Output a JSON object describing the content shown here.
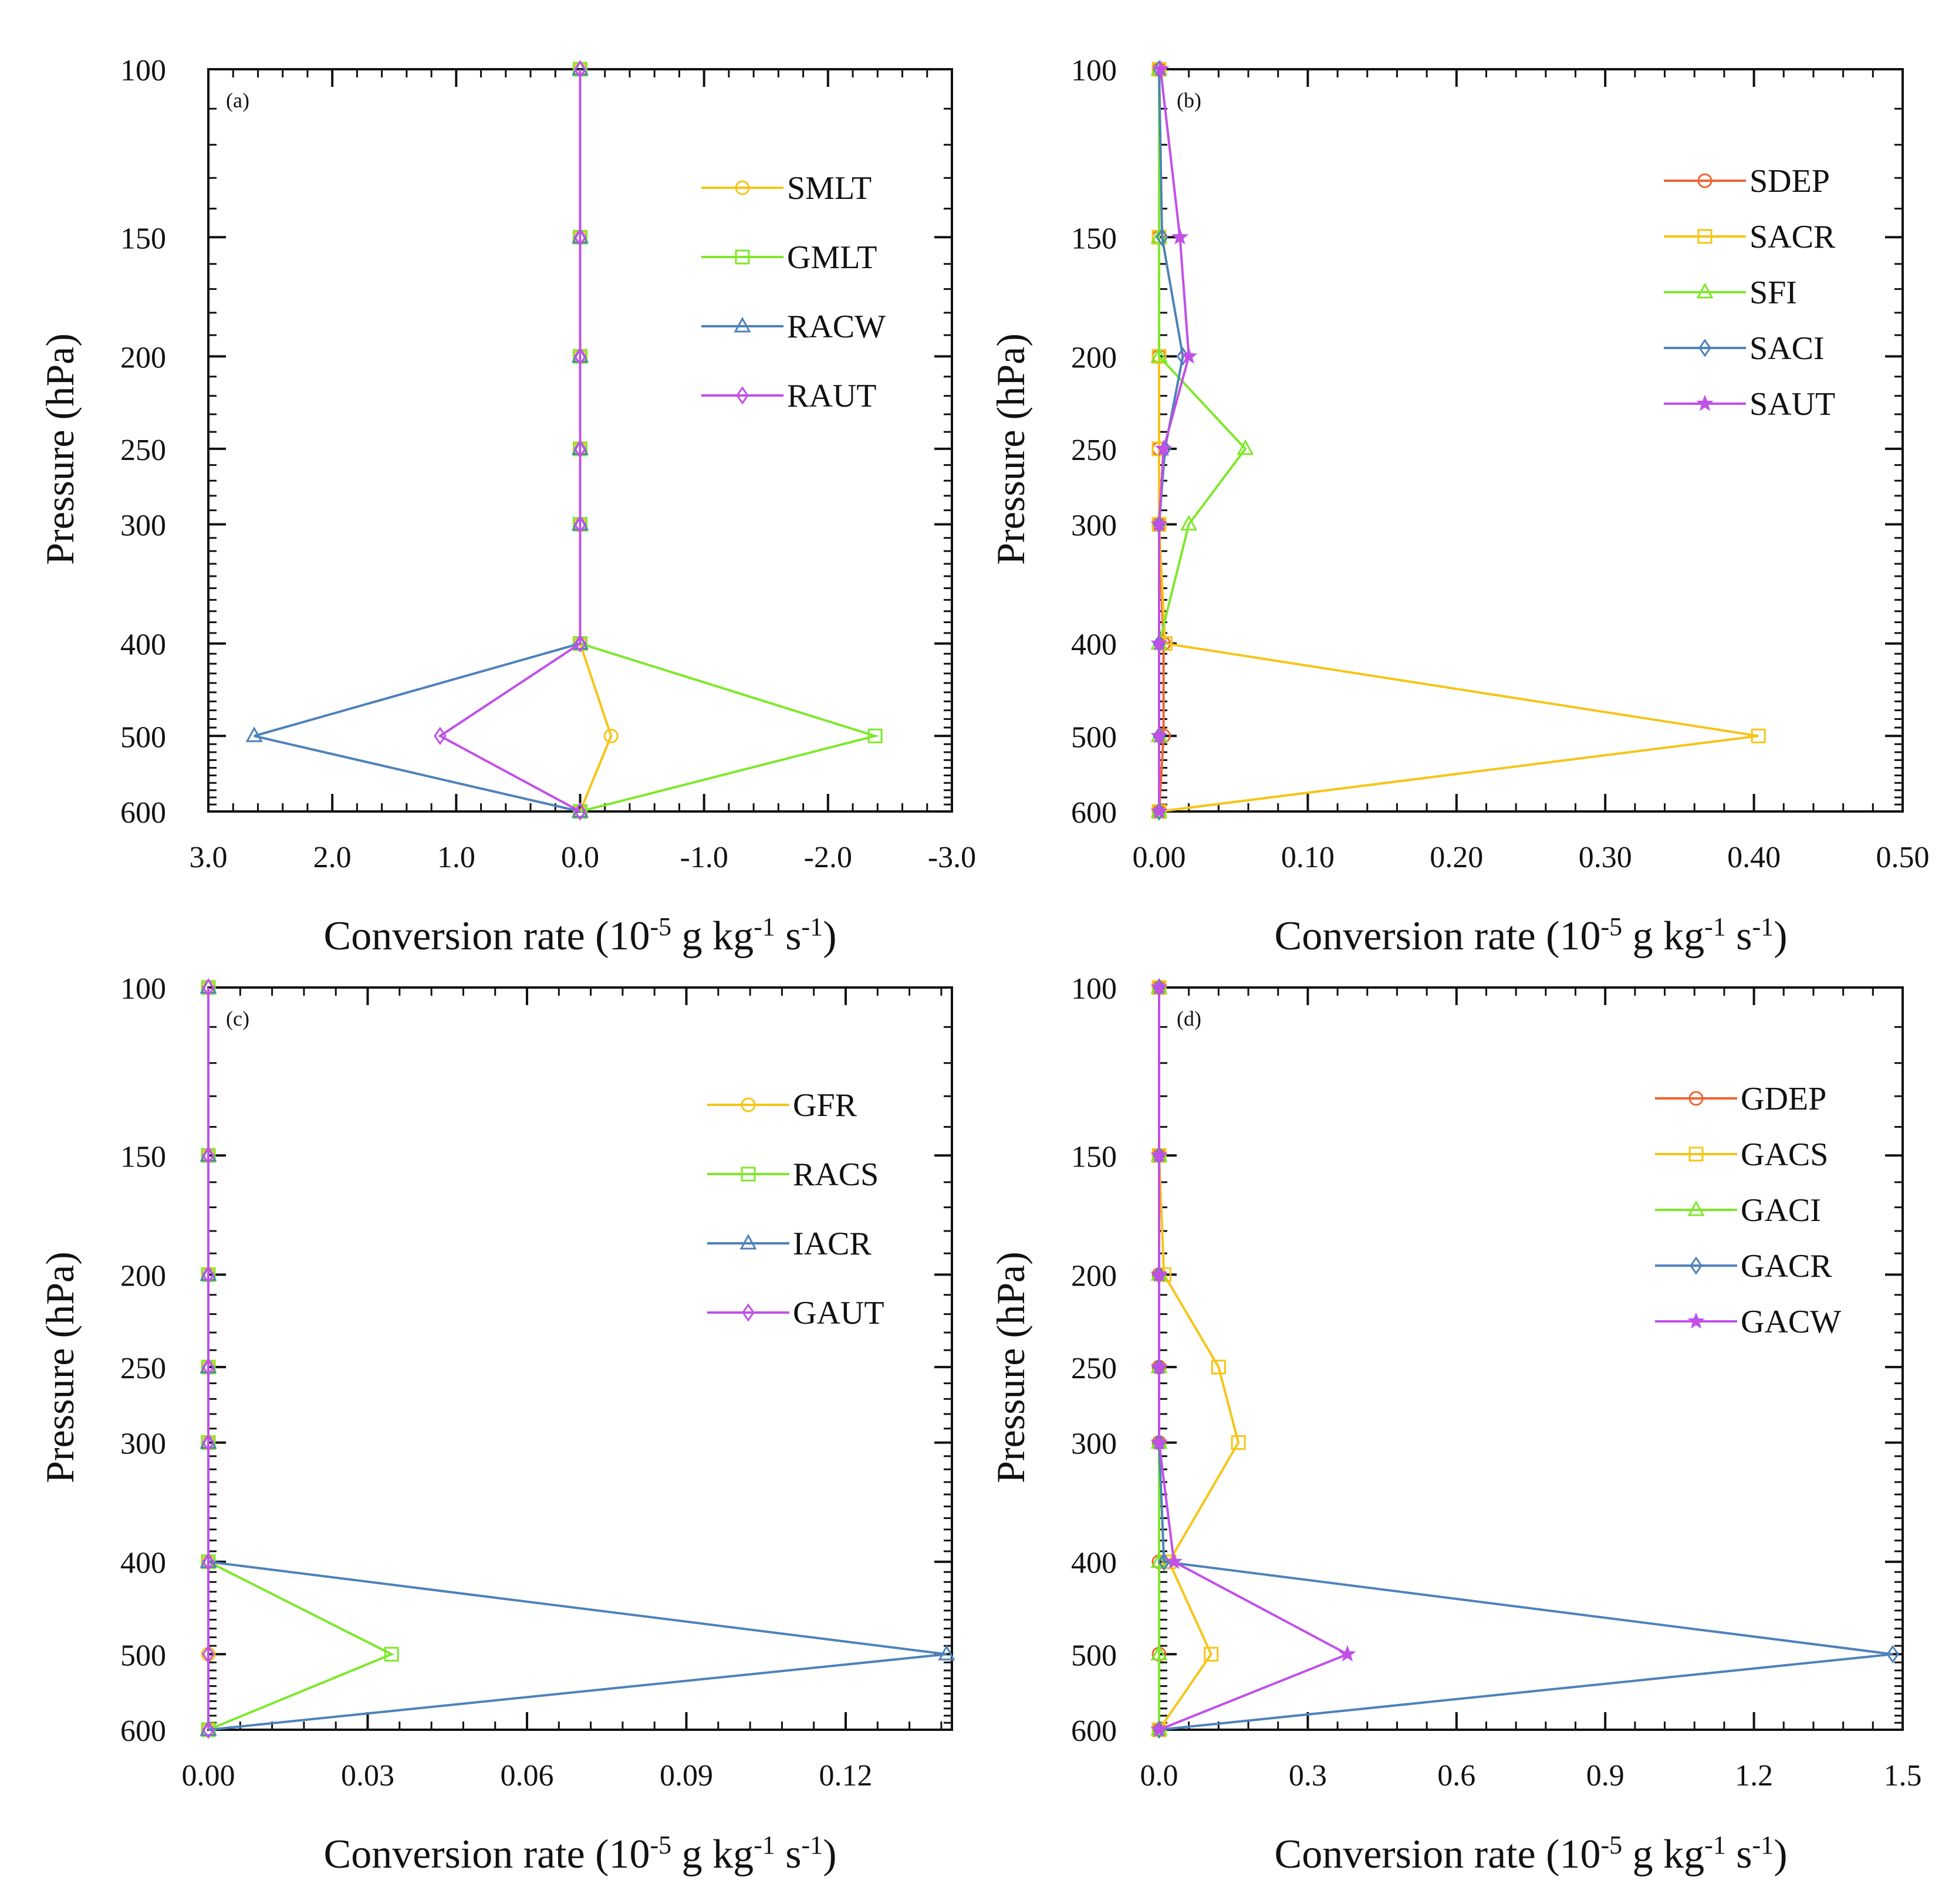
{
  "chart_data": [
    {
      "panel": "(a)",
      "type": "line",
      "orientation": "vertical-profile",
      "ylabel": "Pressure (hPa)",
      "xlabel": "Conversion rate",
      "xunit": "(10-5 g kg-1 s-1)",
      "xlim": [
        3.0,
        -3.0
      ],
      "xticks": [
        3.0,
        2.0,
        1.0,
        0.0,
        -1.0,
        -2.0,
        -3.0
      ],
      "xtick_labels": [
        "3.0",
        "2.0",
        "1.0",
        "0.0",
        "-1.0",
        "-2.0",
        "-3.0"
      ],
      "ylim": [
        100,
        600
      ],
      "yticks": [
        100,
        150,
        200,
        250,
        300,
        400,
        500,
        600
      ],
      "levels": [
        100,
        150,
        200,
        250,
        300,
        400,
        500,
        600
      ],
      "series": [
        {
          "name": "SMLT",
          "color": "#f5c518",
          "marker": "circle",
          "values": [
            0,
            0,
            0,
            0,
            0,
            0,
            -0.25,
            0
          ]
        },
        {
          "name": "GMLT",
          "color": "#7ee82b",
          "marker": "square",
          "values": [
            0,
            0,
            0,
            0,
            0,
            0,
            -2.38,
            0
          ]
        },
        {
          "name": "RACW",
          "color": "#4d82ba",
          "marker": "triangle",
          "values": [
            0,
            0,
            0,
            0,
            0,
            0,
            2.63,
            0
          ]
        },
        {
          "name": "RAUT",
          "color": "#c150e8",
          "marker": "diamond",
          "values": [
            0,
            0,
            0,
            0,
            0,
            0,
            1.13,
            0
          ]
        }
      ]
    },
    {
      "panel": "(b)",
      "type": "line",
      "orientation": "vertical-profile",
      "ylabel": "Pressure (hPa)",
      "xlabel": "Conversion rate",
      "xunit": "(10-5 g kg-1 s-1)",
      "xlim": [
        0.0,
        0.5
      ],
      "xticks": [
        0.0,
        0.1,
        0.2,
        0.3,
        0.4,
        0.5
      ],
      "xtick_labels": [
        "0.00",
        "0.10",
        "0.20",
        "0.30",
        "0.40",
        "0.50"
      ],
      "ylim": [
        100,
        600
      ],
      "yticks": [
        100,
        150,
        200,
        250,
        300,
        400,
        500,
        600
      ],
      "levels": [
        100,
        150,
        200,
        250,
        300,
        400,
        500,
        600
      ],
      "series": [
        {
          "name": "SDEP",
          "color": "#ee6530",
          "marker": "circle",
          "values": [
            0,
            0,
            0,
            0,
            0,
            0.003,
            0.003,
            0
          ]
        },
        {
          "name": "SACR",
          "color": "#f5c518",
          "marker": "square",
          "values": [
            0,
            0,
            0,
            0,
            0,
            0.004,
            0.403,
            0
          ]
        },
        {
          "name": "SFI",
          "color": "#7ee82b",
          "marker": "triangle",
          "values": [
            0,
            0,
            0,
            0.058,
            0.02,
            0,
            0,
            0
          ]
        },
        {
          "name": "SACI",
          "color": "#4d82ba",
          "marker": "diamond",
          "values": [
            0,
            0.002,
            0.016,
            0.004,
            0,
            0,
            0,
            0
          ]
        },
        {
          "name": "SAUT",
          "color": "#c150e8",
          "marker": "star",
          "values": [
            0.001,
            0.014,
            0.02,
            0.003,
            0,
            0,
            0,
            0
          ]
        }
      ]
    },
    {
      "panel": "(c)",
      "type": "line",
      "orientation": "vertical-profile",
      "ylabel": "Pressure (hPa)",
      "xlabel": "Conversion rate",
      "xunit": "(10-5 g kg-1 s-1)",
      "xlim": [
        0.0,
        0.14
      ],
      "xticks": [
        0.0,
        0.03,
        0.06,
        0.09,
        0.12
      ],
      "xtick_labels": [
        "0.00",
        "0.03",
        "0.06",
        "0.09",
        "0.12"
      ],
      "ylim": [
        100,
        600
      ],
      "yticks": [
        100,
        150,
        200,
        250,
        300,
        400,
        500,
        600
      ],
      "levels": [
        100,
        150,
        200,
        250,
        300,
        400,
        500,
        600
      ],
      "series": [
        {
          "name": "GFR",
          "color": "#f5c518",
          "marker": "circle",
          "values": [
            0,
            0,
            0,
            0,
            0,
            0,
            0,
            0
          ]
        },
        {
          "name": "RACS",
          "color": "#7ee82b",
          "marker": "square",
          "values": [
            0,
            0,
            0,
            0,
            0,
            0,
            0.0345,
            0
          ]
        },
        {
          "name": "IACR",
          "color": "#4d82ba",
          "marker": "triangle",
          "values": [
            0,
            0,
            0,
            0,
            0,
            0,
            0.139,
            0
          ]
        },
        {
          "name": "GAUT",
          "color": "#c150e8",
          "marker": "diamond",
          "values": [
            0,
            0,
            0,
            0,
            0,
            0,
            0,
            0
          ]
        }
      ]
    },
    {
      "panel": "(d)",
      "type": "line",
      "orientation": "vertical-profile",
      "ylabel": "Pressure (hPa)",
      "xlabel": "Conversion rate",
      "xunit": "(10-5 g kg-1 s-1)",
      "xlim": [
        0.0,
        1.5
      ],
      "xticks": [
        0.0,
        0.3,
        0.6,
        0.9,
        1.2,
        1.5
      ],
      "xtick_labels": [
        "0.0",
        "0.3",
        "0.6",
        "0.9",
        "1.2",
        "1.5"
      ],
      "ylim": [
        100,
        600
      ],
      "yticks": [
        100,
        150,
        200,
        250,
        300,
        400,
        500,
        600
      ],
      "levels": [
        100,
        150,
        200,
        250,
        300,
        400,
        500,
        600
      ],
      "series": [
        {
          "name": "GDEP",
          "color": "#ee6530",
          "marker": "circle",
          "values": [
            0,
            0,
            0,
            0,
            0,
            0,
            0,
            0
          ]
        },
        {
          "name": "GACS",
          "color": "#f5c518",
          "marker": "square",
          "values": [
            0,
            0,
            0.01,
            0.12,
            0.16,
            0.02,
            0.105,
            0
          ]
        },
        {
          "name": "GACI",
          "color": "#7ee82b",
          "marker": "triangle",
          "values": [
            0,
            0,
            0,
            0,
            0,
            0,
            0,
            0
          ]
        },
        {
          "name": "GACR",
          "color": "#4d82ba",
          "marker": "diamond",
          "values": [
            0,
            0,
            0,
            0,
            0,
            0.01,
            1.48,
            0
          ]
        },
        {
          "name": "GACW",
          "color": "#c150e8",
          "marker": "star",
          "values": [
            0,
            0,
            0,
            0,
            0,
            0.03,
            0.38,
            0
          ]
        }
      ]
    }
  ]
}
